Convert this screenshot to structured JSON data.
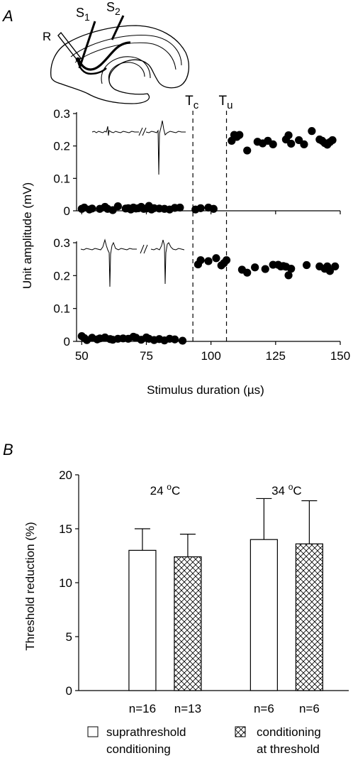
{
  "panel_a": {
    "label": "A",
    "schematic": {
      "labels": {
        "r": "R",
        "s1": "S",
        "s1_sub": "1",
        "s2": "S",
        "s2_sub": "2"
      }
    },
    "markers": [
      {
        "label": "T",
        "sub": "c",
        "x": 93
      },
      {
        "label": "T",
        "sub": "u",
        "x": 106
      }
    ]
  },
  "panel_b": {
    "label": "B"
  },
  "chart_data": [
    {
      "type": "scatter",
      "panel": "A-top",
      "xlabel": "",
      "ylabel": "Unit amplitude (mV)",
      "xlim": [
        48,
        150
      ],
      "ylim": [
        0,
        0.3
      ],
      "yticks": [
        0,
        0.1,
        0.2,
        0.3
      ],
      "ytick_labels": [
        "0",
        "0.1",
        "0.2",
        "0.3"
      ],
      "x": [
        50,
        51,
        53,
        54,
        57,
        59,
        60,
        62,
        64,
        67,
        68,
        69,
        70,
        71,
        72,
        73,
        74,
        75,
        76,
        77,
        78,
        80,
        82,
        84,
        86,
        88,
        94,
        96,
        99,
        101,
        108,
        109,
        110,
        111,
        114,
        118,
        120,
        122,
        124,
        129,
        130,
        131,
        134,
        136,
        139,
        142,
        143,
        144,
        145,
        146,
        147
      ],
      "y": [
        0.006,
        0.01,
        0.004,
        0.007,
        0.006,
        0.012,
        0.006,
        0.002,
        0.014,
        0.007,
        0.008,
        0.004,
        0.01,
        0.007,
        0.008,
        0.012,
        0.006,
        0.007,
        0.015,
        0.004,
        0.008,
        0.007,
        0.006,
        0.004,
        0.009,
        0.01,
        0.004,
        0.008,
        0.01,
        0.006,
        0.216,
        0.234,
        0.228,
        0.234,
        0.186,
        0.213,
        0.208,
        0.216,
        0.205,
        0.22,
        0.233,
        0.207,
        0.218,
        0.205,
        0.246,
        0.22,
        0.216,
        0.209,
        0.204,
        0.212,
        0.218
      ]
    },
    {
      "type": "scatter",
      "panel": "A-bottom",
      "xlabel": "Stimulus duration (µs)",
      "ylabel": "Unit amplitude (mV)",
      "xlim": [
        48,
        150
      ],
      "ylim": [
        0,
        0.3
      ],
      "xticks": [
        50,
        75,
        100,
        125,
        150
      ],
      "xtick_labels": [
        "50",
        "75",
        "100",
        "125",
        "150"
      ],
      "yticks": [
        0,
        0.1,
        0.2,
        0.3
      ],
      "ytick_labels": [
        "0",
        "0.1",
        "0.2",
        "0.3"
      ],
      "x": [
        50,
        51,
        52,
        54,
        56,
        57,
        59,
        61,
        62,
        64,
        66,
        68,
        70,
        71,
        73,
        75,
        76,
        78,
        80,
        82,
        84,
        86,
        89,
        95,
        96,
        99,
        102,
        104,
        105,
        106,
        112,
        114,
        117,
        121,
        124,
        126,
        127,
        128,
        129,
        130,
        131,
        137,
        142,
        144,
        145,
        146,
        148
      ],
      "y": [
        0.016,
        0.01,
        0.004,
        0.011,
        0.006,
        0.009,
        0.012,
        0.007,
        0.005,
        0.008,
        0.009,
        0.008,
        0.014,
        0.011,
        0.005,
        0.012,
        0.008,
        0.004,
        0.007,
        0.003,
        0.008,
        0.006,
        0.002,
        0.234,
        0.247,
        0.244,
        0.253,
        0.231,
        0.238,
        0.247,
        0.218,
        0.209,
        0.225,
        0.22,
        0.233,
        0.233,
        0.228,
        0.229,
        0.227,
        0.201,
        0.221,
        0.232,
        0.228,
        0.221,
        0.228,
        0.214,
        0.228
      ]
    },
    {
      "type": "bar",
      "panel": "B",
      "xlabel": "",
      "ylabel": "Threshold reduction (%)",
      "ylim": [
        0,
        20
      ],
      "yticks": [
        0,
        5,
        10,
        15,
        20
      ],
      "ytick_labels": [
        "0",
        "5",
        "10",
        "15",
        "20"
      ],
      "groups": [
        {
          "label": "24 ",
          "temp_sup": "o",
          "temp_unit": "C"
        },
        {
          "label": "34 ",
          "temp_sup": "o",
          "temp_unit": "C"
        }
      ],
      "series": [
        {
          "name": "suprathreshold conditioning",
          "pattern": "open",
          "values": [
            13.0,
            14.0
          ],
          "errors": [
            2.0,
            3.8
          ],
          "n_labels": [
            "n=16",
            "n=6"
          ]
        },
        {
          "name": "conditioning at threshold",
          "pattern": "crosshatch",
          "values": [
            12.4,
            13.6
          ],
          "errors": [
            2.1,
            4.0
          ],
          "n_labels": [
            "n=13",
            "n=6"
          ]
        }
      ],
      "legend": [
        {
          "pattern": "open",
          "line1": "suprathreshold",
          "line2": "conditioning"
        },
        {
          "pattern": "crosshatch",
          "line1": "conditioning",
          "line2": "at threshold"
        }
      ]
    }
  ]
}
